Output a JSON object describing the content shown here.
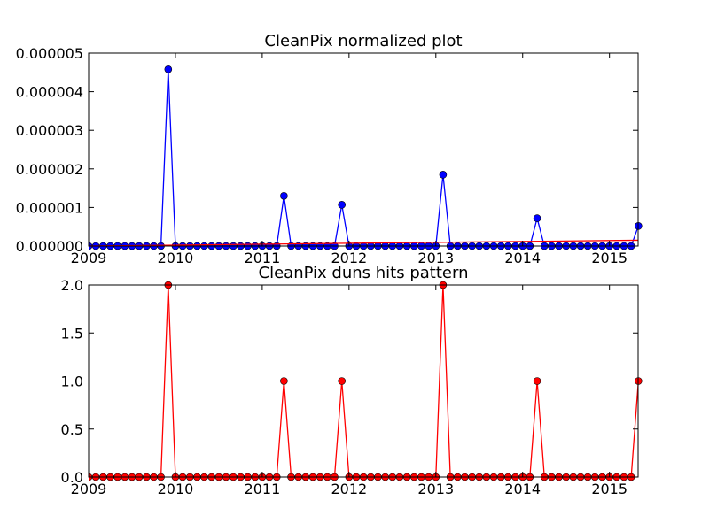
{
  "chart_data": [
    {
      "type": "line",
      "title": "CleanPix normalized plot",
      "xlabel": "",
      "ylabel": "",
      "xlim": [
        2009.0,
        2015.33
      ],
      "ylim": [
        0,
        5e-06
      ],
      "x_ticks": [
        2009,
        2010,
        2011,
        2012,
        2013,
        2014,
        2015
      ],
      "x_tick_labels": [
        "2009",
        "2010",
        "2011",
        "2012",
        "2013",
        "2014",
        "2015"
      ],
      "y_ticks": [
        0,
        1e-06,
        2e-06,
        3e-06,
        4e-06,
        5e-06
      ],
      "y_tick_labels": [
        "0.000000",
        "0.000001",
        "0.000002",
        "0.000003",
        "0.000004",
        "0.000005"
      ],
      "grid": false,
      "series": [
        {
          "color": "#0000ff",
          "marker": "circle",
          "x": [
            2009.0,
            2009.083,
            2009.167,
            2009.25,
            2009.333,
            2009.417,
            2009.5,
            2009.583,
            2009.667,
            2009.75,
            2009.833,
            2009.917,
            2010.0,
            2010.083,
            2010.167,
            2010.25,
            2010.333,
            2010.417,
            2010.5,
            2010.583,
            2010.667,
            2010.75,
            2010.833,
            2010.917,
            2011.0,
            2011.083,
            2011.167,
            2011.25,
            2011.333,
            2011.417,
            2011.5,
            2011.583,
            2011.667,
            2011.75,
            2011.833,
            2011.917,
            2012.0,
            2012.083,
            2012.167,
            2012.25,
            2012.333,
            2012.417,
            2012.5,
            2012.583,
            2012.667,
            2012.75,
            2012.833,
            2012.917,
            2013.0,
            2013.083,
            2013.167,
            2013.25,
            2013.333,
            2013.417,
            2013.5,
            2013.583,
            2013.667,
            2013.75,
            2013.833,
            2013.917,
            2014.0,
            2014.083,
            2014.167,
            2014.25,
            2014.333,
            2014.417,
            2014.5,
            2014.583,
            2014.667,
            2014.75,
            2014.833,
            2014.917,
            2015.0,
            2015.083,
            2015.167,
            2015.25,
            2015.333
          ],
          "values": [
            0,
            0,
            0,
            0,
            0,
            0,
            0,
            0,
            0,
            0,
            0,
            4.58e-06,
            0,
            0,
            0,
            0,
            0,
            0,
            0,
            0,
            0,
            0,
            0,
            0,
            0,
            0,
            0,
            1.3e-06,
            0,
            0,
            0,
            0,
            0,
            0,
            0,
            1.07e-06,
            0,
            0,
            0,
            0,
            0,
            0,
            0,
            0,
            0,
            0,
            0,
            0,
            0,
            1.85e-06,
            0,
            0,
            0,
            0,
            0,
            0,
            0,
            0,
            0,
            0,
            0,
            0,
            7.2e-07,
            0,
            0,
            0,
            0,
            0,
            0,
            0,
            0,
            0,
            0,
            0,
            0,
            0,
            5.2e-07
          ]
        },
        {
          "color": "#ff0000",
          "marker": "none",
          "x": [
            2009.0,
            2015.33
          ],
          "values": [
            0,
            1.5e-07
          ]
        }
      ]
    },
    {
      "type": "line",
      "title": "CleanPix duns hits pattern",
      "xlabel": "",
      "ylabel": "",
      "xlim": [
        2009.0,
        2015.33
      ],
      "ylim": [
        0,
        2.0
      ],
      "x_ticks": [
        2009,
        2010,
        2011,
        2012,
        2013,
        2014,
        2015
      ],
      "x_tick_labels": [
        "2009",
        "2010",
        "2011",
        "2012",
        "2013",
        "2014",
        "2015"
      ],
      "y_ticks": [
        0,
        0.5,
        1.0,
        1.5,
        2.0
      ],
      "y_tick_labels": [
        "0.0",
        "0.5",
        "1.0",
        "1.5",
        "2.0"
      ],
      "grid": false,
      "series": [
        {
          "color": "#ff0000",
          "marker": "circle",
          "x": [
            2009.0,
            2009.083,
            2009.167,
            2009.25,
            2009.333,
            2009.417,
            2009.5,
            2009.583,
            2009.667,
            2009.75,
            2009.833,
            2009.917,
            2010.0,
            2010.083,
            2010.167,
            2010.25,
            2010.333,
            2010.417,
            2010.5,
            2010.583,
            2010.667,
            2010.75,
            2010.833,
            2010.917,
            2011.0,
            2011.083,
            2011.167,
            2011.25,
            2011.333,
            2011.417,
            2011.5,
            2011.583,
            2011.667,
            2011.75,
            2011.833,
            2011.917,
            2012.0,
            2012.083,
            2012.167,
            2012.25,
            2012.333,
            2012.417,
            2012.5,
            2012.583,
            2012.667,
            2012.75,
            2012.833,
            2012.917,
            2013.0,
            2013.083,
            2013.167,
            2013.25,
            2013.333,
            2013.417,
            2013.5,
            2013.583,
            2013.667,
            2013.75,
            2013.833,
            2013.917,
            2014.0,
            2014.083,
            2014.167,
            2014.25,
            2014.333,
            2014.417,
            2014.5,
            2014.583,
            2014.667,
            2014.75,
            2014.833,
            2014.917,
            2015.0,
            2015.083,
            2015.167,
            2015.25,
            2015.333
          ],
          "values": [
            0,
            0,
            0,
            0,
            0,
            0,
            0,
            0,
            0,
            0,
            0,
            2,
            0,
            0,
            0,
            0,
            0,
            0,
            0,
            0,
            0,
            0,
            0,
            0,
            0,
            0,
            0,
            1,
            0,
            0,
            0,
            0,
            0,
            0,
            0,
            1,
            0,
            0,
            0,
            0,
            0,
            0,
            0,
            0,
            0,
            0,
            0,
            0,
            0,
            2,
            0,
            0,
            0,
            0,
            0,
            0,
            0,
            0,
            0,
            0,
            0,
            0,
            1,
            0,
            0,
            0,
            0,
            0,
            0,
            0,
            0,
            0,
            0,
            0,
            0,
            0,
            1
          ]
        }
      ]
    }
  ]
}
